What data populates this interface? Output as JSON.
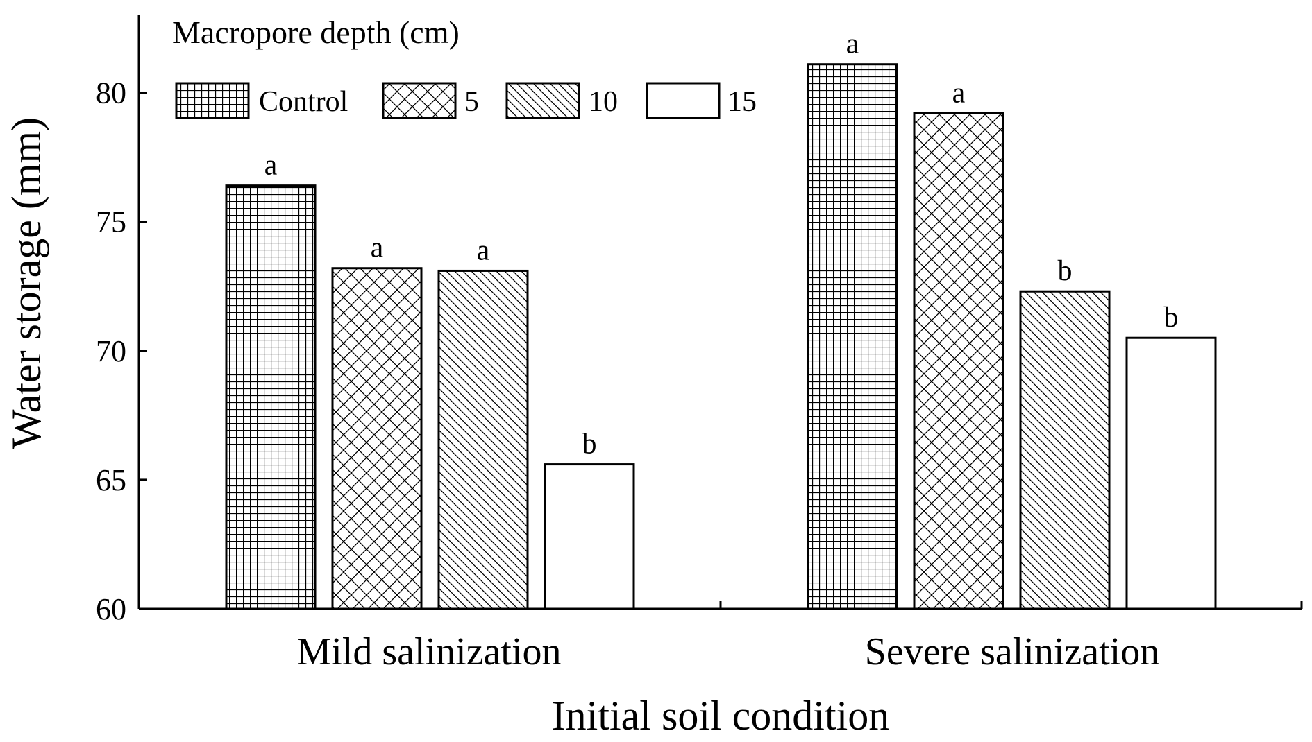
{
  "chart_data": {
    "type": "bar",
    "categories": [
      "Mild salinization",
      "Severe salinization"
    ],
    "series": [
      {
        "name": "Control",
        "pattern": "grid",
        "values": [
          76.4,
          81.1
        ],
        "significance": [
          "a",
          "a"
        ]
      },
      {
        "name": "5",
        "pattern": "crosshatch",
        "values": [
          73.2,
          79.2
        ],
        "significance": [
          "a",
          "a"
        ]
      },
      {
        "name": "10",
        "pattern": "diagonal",
        "values": [
          73.1,
          72.3
        ],
        "significance": [
          "a",
          "b"
        ]
      },
      {
        "name": "15",
        "pattern": "none",
        "values": [
          65.6,
          70.5
        ],
        "significance": [
          "b",
          "b"
        ]
      }
    ],
    "title": "",
    "xlabel": "Initial soil condition",
    "ylabel": "Water storage (mm)",
    "ylim": [
      60,
      83
    ],
    "yticks": [
      "60",
      "65",
      "70",
      "75",
      "80"
    ],
    "legend": {
      "title": "Macropore depth (cm)",
      "placement": "top-left"
    },
    "grid": false
  },
  "colors": {
    "bar_fill": "#ffffff",
    "bar_stroke": "#000000",
    "axis": "#000000"
  }
}
